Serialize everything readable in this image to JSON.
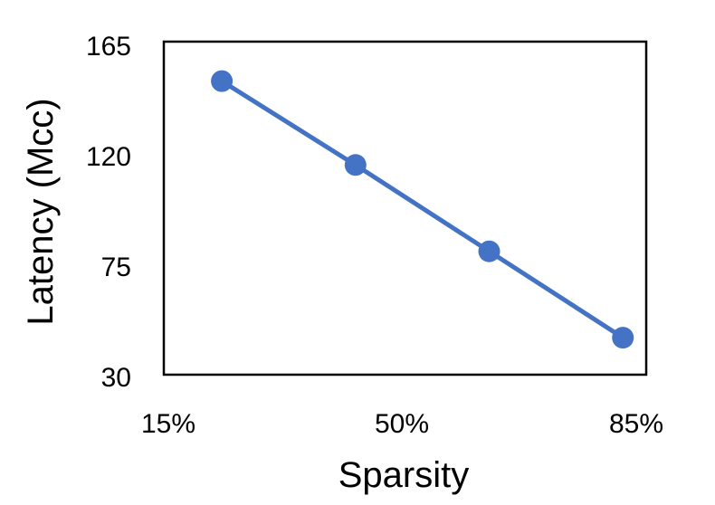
{
  "chart_data": {
    "type": "line",
    "title": "",
    "xlabel": "Sparsity",
    "ylabel": "Latency (Mcc)",
    "x_tick_labels": [
      "15%",
      "50%",
      "85%"
    ],
    "x_ticks": [
      15,
      50,
      85
    ],
    "xlim": [
      15,
      85
    ],
    "y_tick_labels": [
      "165",
      "120",
      "75",
      "30"
    ],
    "y_ticks": [
      165,
      120,
      75,
      30
    ],
    "ylim": [
      30,
      165
    ],
    "grid": false,
    "legend": "none",
    "series": [
      {
        "color": "#4472C4",
        "x": [
          23,
          43,
          63,
          83
        ],
        "y": [
          149,
          115,
          80,
          45
        ]
      }
    ]
  }
}
